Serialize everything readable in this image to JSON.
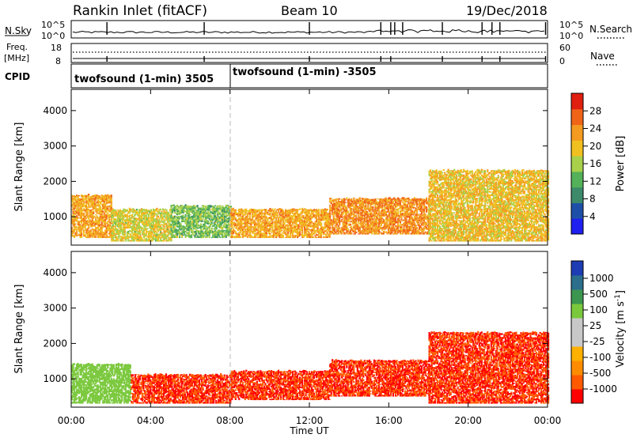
{
  "header": {
    "station": "Rankin Inlet (fitACF)",
    "beam": "Beam 10",
    "date": "19/Dec/2018"
  },
  "top_panels": {
    "nsky_label": "N.Sky",
    "nsearch_label": "N.Search",
    "y_top": "10^5",
    "y_bottom": "10^0",
    "freq_label_top": "Freq.",
    "freq_label_unit": "[MHz]",
    "freq_ticks": [
      "18",
      "8"
    ],
    "nave_label": "Nave",
    "nave_ticks": [
      "60",
      "0"
    ],
    "cpid_label": "CPID",
    "cpid_segments": [
      "twofsound (1-min) 3505",
      "twofsound (1-min) -3505"
    ]
  },
  "time_axis": {
    "ticks": [
      "00:00",
      "04:00",
      "08:00",
      "12:00",
      "16:00",
      "20:00",
      "00:00"
    ],
    "label": "Time UT"
  },
  "colors": {
    "power": [
      "#1f1ff0",
      "#1e4fa8",
      "#3c8a6a",
      "#55b05a",
      "#a8d04a",
      "#f0c020",
      "#f59a20",
      "#f06418",
      "#e01f10"
    ],
    "velocity": [
      "#ff0000",
      "#ff5a00",
      "#ff8c00",
      "#ffb000",
      "#c8c8c8",
      "#c8c8c8",
      "#7ac83c",
      "#3c9650",
      "#2c6e8c",
      "#1e3cb4"
    ]
  },
  "chart_data": [
    {
      "type": "heatmap",
      "name": "power",
      "ylabel": "Slant Range [km]",
      "yticks": [
        "1000",
        "2000",
        "3000",
        "4000"
      ],
      "ylim": [
        200,
        4600
      ],
      "xlim_hours": [
        0,
        24
      ],
      "colorbar_label": "Power [dB]",
      "colorbar_ticks": [
        "4",
        "8",
        "12",
        "16",
        "20",
        "24",
        "28"
      ],
      "colorbar_range": [
        0,
        32
      ],
      "approx_regions": [
        {
          "t0": 0.0,
          "t1": 2.0,
          "r0": 400,
          "r1": 1600,
          "value": 22
        },
        {
          "t0": 2.0,
          "t1": 5.0,
          "r0": 300,
          "r1": 1200,
          "value": 18
        },
        {
          "t0": 5.0,
          "t1": 8.0,
          "r0": 400,
          "r1": 1300,
          "value": 14
        },
        {
          "t0": 8.0,
          "t1": 13.0,
          "r0": 400,
          "r1": 1200,
          "value": 22
        },
        {
          "t0": 13.0,
          "t1": 18.0,
          "r0": 500,
          "r1": 1500,
          "value": 24
        },
        {
          "t0": 18.0,
          "t1": 24.0,
          "r0": 300,
          "r1": 2300,
          "value": 20
        }
      ]
    },
    {
      "type": "heatmap",
      "name": "velocity",
      "ylabel": "Slant Range [km]",
      "yticks": [
        "1000",
        "2000",
        "3000",
        "4000"
      ],
      "ylim": [
        200,
        4600
      ],
      "xlim_hours": [
        0,
        24
      ],
      "colorbar_label": "Velocity [m s^-1]",
      "colorbar_ticks": [
        "1000",
        "500",
        "100",
        "25",
        "-25",
        "-100",
        "-500",
        "-1000"
      ],
      "approx_regions": [
        {
          "t0": 0.0,
          "t1": 3.0,
          "r0": 300,
          "r1": 1400,
          "value": 25
        },
        {
          "t0": 3.0,
          "t1": 8.0,
          "r0": 300,
          "r1": 1100,
          "value": -100
        },
        {
          "t0": 8.0,
          "t1": 13.0,
          "r0": 400,
          "r1": 1200,
          "value": -100
        },
        {
          "t0": 13.0,
          "t1": 18.0,
          "r0": 500,
          "r1": 1500,
          "value": -100
        },
        {
          "t0": 18.0,
          "t1": 24.0,
          "r0": 300,
          "r1": 2300,
          "value": -100
        }
      ]
    }
  ]
}
